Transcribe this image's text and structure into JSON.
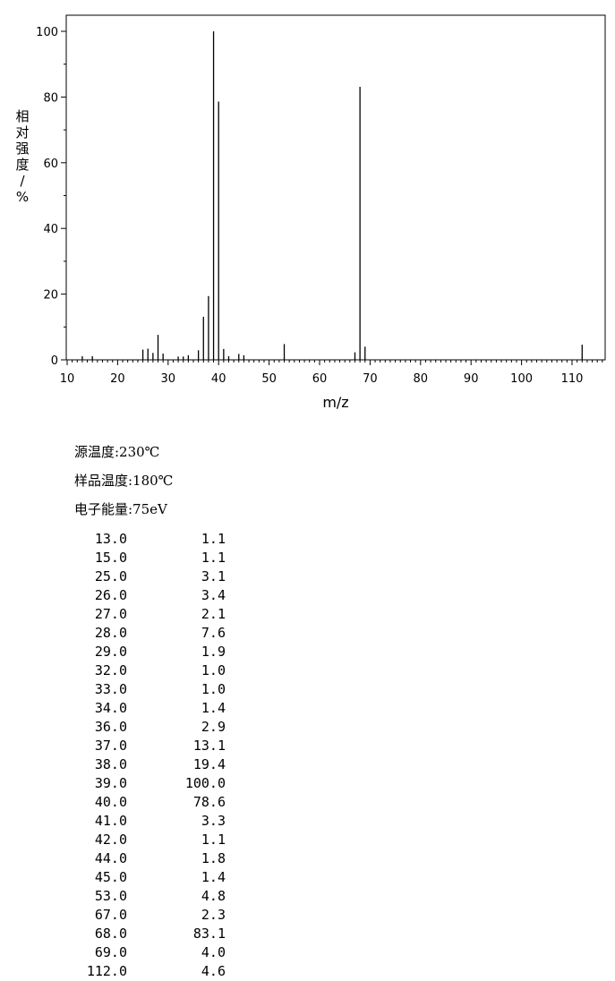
{
  "chart_data": {
    "type": "bar",
    "title": "",
    "xlabel": "m/z",
    "ylabel": "相对强度/%",
    "xlim": [
      10,
      116
    ],
    "ylim": [
      0,
      100
    ],
    "x_ticks": [
      10,
      20,
      30,
      40,
      50,
      60,
      70,
      80,
      90,
      100,
      110
    ],
    "y_ticks": [
      0,
      20,
      40,
      60,
      80,
      100
    ],
    "grid": false,
    "x": [
      13,
      15,
      25,
      26,
      27,
      28,
      29,
      32,
      33,
      34,
      36,
      37,
      38,
      39,
      40,
      41,
      42,
      44,
      45,
      53,
      67,
      68,
      69,
      112
    ],
    "values": [
      1.1,
      1.1,
      3.1,
      3.4,
      2.1,
      7.6,
      1.9,
      1.0,
      1.0,
      1.4,
      2.9,
      13.1,
      19.4,
      100.0,
      78.6,
      3.3,
      1.1,
      1.8,
      1.4,
      4.8,
      2.3,
      83.1,
      4.0,
      4.6
    ]
  },
  "conditions": {
    "source_temp": "源温度:230℃",
    "sample_temp": "样品温度:180℃",
    "electron_energy": "电子能量:75eV"
  },
  "peak_table": [
    {
      "mz": "13.0",
      "abundance": "1.1"
    },
    {
      "mz": "15.0",
      "abundance": "1.1"
    },
    {
      "mz": "25.0",
      "abundance": "3.1"
    },
    {
      "mz": "26.0",
      "abundance": "3.4"
    },
    {
      "mz": "27.0",
      "abundance": "2.1"
    },
    {
      "mz": "28.0",
      "abundance": "7.6"
    },
    {
      "mz": "29.0",
      "abundance": "1.9"
    },
    {
      "mz": "32.0",
      "abundance": "1.0"
    },
    {
      "mz": "33.0",
      "abundance": "1.0"
    },
    {
      "mz": "34.0",
      "abundance": "1.4"
    },
    {
      "mz": "36.0",
      "abundance": "2.9"
    },
    {
      "mz": "37.0",
      "abundance": "13.1"
    },
    {
      "mz": "38.0",
      "abundance": "19.4"
    },
    {
      "mz": "39.0",
      "abundance": "100.0"
    },
    {
      "mz": "40.0",
      "abundance": "78.6"
    },
    {
      "mz": "41.0",
      "abundance": "3.3"
    },
    {
      "mz": "42.0",
      "abundance": "1.1"
    },
    {
      "mz": "44.0",
      "abundance": "1.8"
    },
    {
      "mz": "45.0",
      "abundance": "1.4"
    },
    {
      "mz": "53.0",
      "abundance": "4.8"
    },
    {
      "mz": "67.0",
      "abundance": "2.3"
    },
    {
      "mz": "68.0",
      "abundance": "83.1"
    },
    {
      "mz": "69.0",
      "abundance": "4.0"
    },
    {
      "mz": "112.0",
      "abundance": "4.6"
    }
  ]
}
